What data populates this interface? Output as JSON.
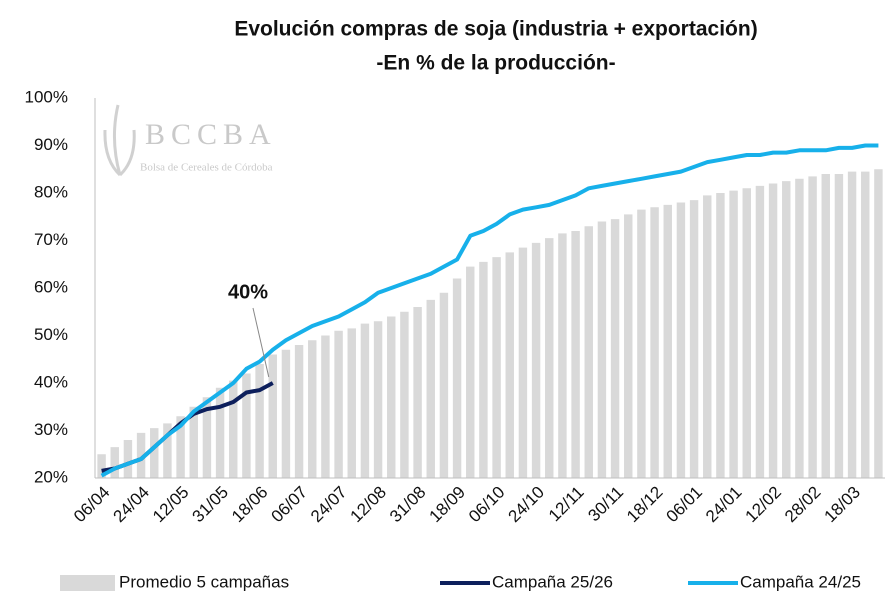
{
  "chart_data": {
    "type": "bar_line",
    "title": "Evolución compras de soja (industria + exportación)",
    "subtitle": "-En % de la producción-",
    "watermark": {
      "logo": "BCCBA",
      "text": "Bolsa de Cereales de Córdoba"
    },
    "annotation": {
      "text": "40%",
      "index": 13
    },
    "categories": [
      "06/04",
      null,
      null,
      "24/04",
      null,
      null,
      "12/05",
      null,
      null,
      "31/05",
      null,
      null,
      "18/06",
      null,
      null,
      "06/07",
      null,
      null,
      "24/07",
      null,
      null,
      "12/08",
      null,
      null,
      "31/08",
      null,
      null,
      "18/09",
      null,
      null,
      "06/10",
      null,
      null,
      "24/10",
      null,
      null,
      "12/11",
      null,
      null,
      "30/11",
      null,
      null,
      "18/12",
      null,
      null,
      "06/01",
      null,
      null,
      "24/01",
      null,
      null,
      "12/02",
      null,
      null,
      "28/02",
      null,
      null,
      "18/03",
      null,
      null
    ],
    "series": [
      {
        "name": "Promedio 5 campañas",
        "kind": "bar",
        "color": "#d9d9d9",
        "values": [
          25,
          26.5,
          28,
          29.5,
          30.5,
          31.5,
          33,
          35,
          37,
          39,
          40.5,
          42,
          44,
          46,
          47,
          48,
          49,
          50,
          51,
          51.5,
          52.5,
          53,
          54,
          55,
          56,
          57.5,
          59,
          62,
          64.5,
          65.5,
          66.5,
          67.5,
          68.5,
          69.5,
          70.5,
          71.5,
          72,
          73,
          74,
          74.5,
          75.5,
          76.5,
          77,
          77.5,
          78,
          78.5,
          79.5,
          80,
          80.5,
          81,
          81.5,
          82,
          82.5,
          83,
          83.5,
          84,
          84,
          84.5,
          84.5,
          85
        ]
      },
      {
        "name": "Campaña 25/26",
        "kind": "line",
        "color": "#0d1f5c",
        "values": [
          21.5,
          22,
          23,
          24,
          26.5,
          29,
          31.5,
          33.5,
          34.5,
          35,
          36,
          38,
          38.5,
          40,
          null,
          null,
          null,
          null,
          null,
          null,
          null,
          null,
          null,
          null,
          null,
          null,
          null,
          null,
          null,
          null,
          null,
          null,
          null,
          null,
          null,
          null,
          null,
          null,
          null,
          null,
          null,
          null,
          null,
          null,
          null,
          null,
          null,
          null,
          null,
          null,
          null,
          null,
          null,
          null,
          null,
          null,
          null,
          null,
          null,
          null
        ]
      },
      {
        "name": "Campaña 24/25",
        "kind": "line",
        "color": "#17b0ea",
        "values": [
          20.5,
          22,
          23,
          24,
          26.5,
          29,
          31,
          34,
          36,
          38,
          40,
          43,
          44.5,
          47,
          49,
          50.5,
          52,
          53,
          54,
          55.5,
          57,
          59,
          60,
          61,
          62,
          63,
          64.5,
          66,
          71,
          72,
          73.5,
          75.5,
          76.5,
          77,
          77.5,
          78.5,
          79.5,
          81,
          81.5,
          82,
          82.5,
          83,
          83.5,
          84,
          84.5,
          85.5,
          86.5,
          87,
          87.5,
          88,
          88,
          88.5,
          88.5,
          89,
          89,
          89,
          89.5,
          89.5,
          90,
          90
        ]
      }
    ],
    "ylim": [
      20,
      100
    ],
    "yticks": [
      {
        "value": 20,
        "label": "20%"
      },
      {
        "value": 30,
        "label": "30%"
      },
      {
        "value": 40,
        "label": "40%"
      },
      {
        "value": 50,
        "label": "50%"
      },
      {
        "value": 60,
        "label": "60%"
      },
      {
        "value": 70,
        "label": "70%"
      },
      {
        "value": 80,
        "label": "80%"
      },
      {
        "value": 90,
        "label": "90%"
      },
      {
        "value": 100,
        "label": "100%"
      }
    ],
    "grid": false,
    "legend": "bottom"
  }
}
